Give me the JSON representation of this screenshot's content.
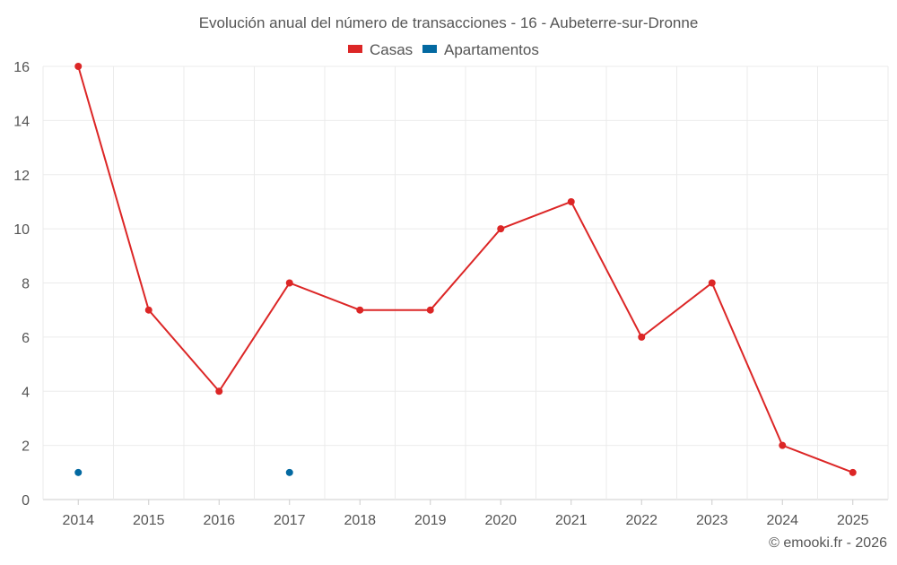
{
  "chart_data": {
    "type": "line",
    "title": "Evolución anual del número de transacciones - 16 - Aubeterre-sur-Dronne",
    "categories": [
      "2014",
      "2015",
      "2016",
      "2017",
      "2018",
      "2019",
      "2020",
      "2021",
      "2022",
      "2023",
      "2024",
      "2025"
    ],
    "series": [
      {
        "name": "Casas",
        "color": "#dc2626",
        "values": [
          16,
          7,
          4,
          8,
          7,
          7,
          10,
          11,
          6,
          8,
          2,
          1
        ]
      },
      {
        "name": "Apartamentos",
        "color": "#0369a1",
        "values": [
          1,
          null,
          null,
          1,
          null,
          null,
          null,
          null,
          null,
          null,
          null,
          null
        ]
      }
    ],
    "ylim": [
      0,
      16
    ],
    "yticks": [
      0,
      2,
      4,
      6,
      8,
      10,
      12,
      14,
      16
    ],
    "grid": true,
    "legend": "top-center",
    "xlabel": "",
    "ylabel": ""
  },
  "credit": "© emooki.fr - 2026"
}
